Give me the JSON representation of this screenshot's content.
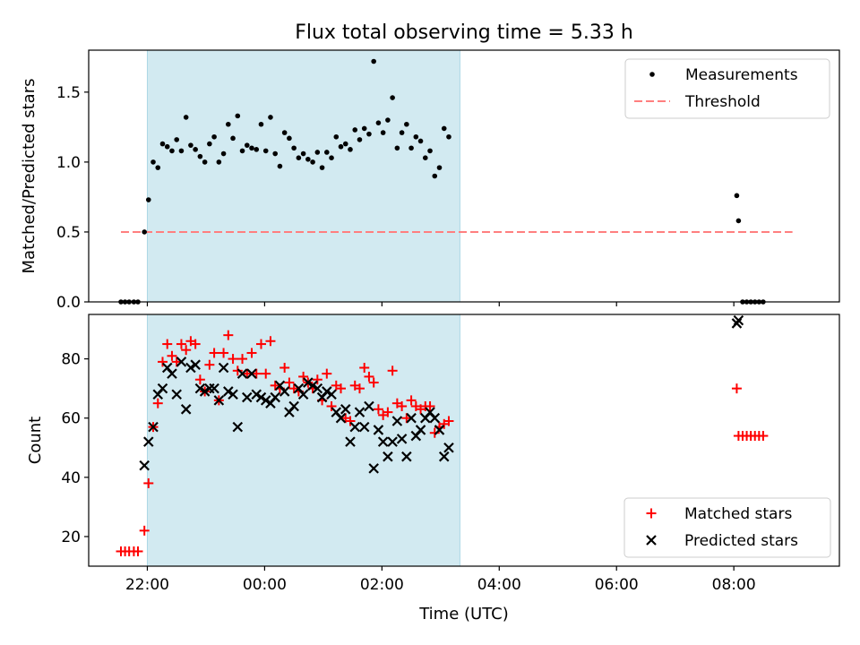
{
  "chart_data": {
    "title": "Flux total observing time = 5.33 h",
    "xlabel": "Time (UTC)",
    "x_unit": "hours relative to 00:00 UTC",
    "xlim": [
      -3.0,
      9.8
    ],
    "x_ticks": [
      {
        "value": -2,
        "label": "22:00"
      },
      {
        "value": 0,
        "label": "00:00"
      },
      {
        "value": 2,
        "label": "02:00"
      },
      {
        "value": 4,
        "label": "04:00"
      },
      {
        "value": 6,
        "label": "06:00"
      },
      {
        "value": 8,
        "label": "08:00"
      }
    ],
    "observing_window": {
      "start": -2.0,
      "end": 3.33,
      "color": "#add8e6"
    },
    "panels": [
      {
        "type": "scatter",
        "ylabel": "Matched/Predicted stars",
        "ylim": [
          0,
          1.8
        ],
        "y_ticks": [
          0.0,
          0.5,
          1.0,
          1.5
        ],
        "y_tick_labels": [
          "0.0",
          "0.5",
          "1.0",
          "1.5"
        ],
        "legend": {
          "placement": "upper right",
          "entries": [
            "Measurements",
            "Threshold"
          ]
        },
        "threshold": {
          "name": "Threshold",
          "value": 0.5,
          "x_range": [
            -2.45,
            9.0
          ],
          "color": "#ff7f7f",
          "style": "dashed"
        },
        "series": [
          {
            "name": "Measurements",
            "marker": "dot",
            "color": "#000000",
            "points": [
              [
                -2.45,
                0.0
              ],
              [
                -2.38,
                0.0
              ],
              [
                -2.31,
                0.0
              ],
              [
                -2.23,
                0.0
              ],
              [
                -2.16,
                0.0
              ],
              [
                -2.05,
                0.5
              ],
              [
                -1.98,
                0.73
              ],
              [
                -1.9,
                1.0
              ],
              [
                -1.82,
                0.96
              ],
              [
                -1.74,
                1.13
              ],
              [
                -1.66,
                1.11
              ],
              [
                -1.58,
                1.08
              ],
              [
                -1.5,
                1.16
              ],
              [
                -1.42,
                1.08
              ],
              [
                -1.34,
                1.32
              ],
              [
                -1.26,
                1.12
              ],
              [
                -1.18,
                1.09
              ],
              [
                -1.1,
                1.04
              ],
              [
                -1.02,
                1.0
              ],
              [
                -0.94,
                1.13
              ],
              [
                -0.86,
                1.18
              ],
              [
                -0.78,
                1.0
              ],
              [
                -0.7,
                1.06
              ],
              [
                -0.62,
                1.27
              ],
              [
                -0.54,
                1.17
              ],
              [
                -0.46,
                1.33
              ],
              [
                -0.38,
                1.08
              ],
              [
                -0.3,
                1.12
              ],
              [
                -0.22,
                1.1
              ],
              [
                -0.14,
                1.09
              ],
              [
                -0.06,
                1.27
              ],
              [
                0.02,
                1.08
              ],
              [
                0.1,
                1.32
              ],
              [
                0.18,
                1.06
              ],
              [
                0.26,
                0.97
              ],
              [
                0.34,
                1.21
              ],
              [
                0.42,
                1.17
              ],
              [
                0.5,
                1.1
              ],
              [
                0.58,
                1.03
              ],
              [
                0.66,
                1.06
              ],
              [
                0.74,
                1.02
              ],
              [
                0.82,
                1.0
              ],
              [
                0.9,
                1.07
              ],
              [
                0.98,
                0.96
              ],
              [
                1.06,
                1.07
              ],
              [
                1.14,
                1.03
              ],
              [
                1.22,
                1.18
              ],
              [
                1.3,
                1.11
              ],
              [
                1.38,
                1.13
              ],
              [
                1.46,
                1.09
              ],
              [
                1.54,
                1.23
              ],
              [
                1.62,
                1.16
              ],
              [
                1.7,
                1.24
              ],
              [
                1.78,
                1.2
              ],
              [
                1.86,
                1.72
              ],
              [
                1.94,
                1.28
              ],
              [
                2.02,
                1.21
              ],
              [
                2.1,
                1.3
              ],
              [
                2.18,
                1.46
              ],
              [
                2.26,
                1.1
              ],
              [
                2.34,
                1.21
              ],
              [
                2.42,
                1.27
              ],
              [
                2.5,
                1.1
              ],
              [
                2.58,
                1.18
              ],
              [
                2.66,
                1.15
              ],
              [
                2.74,
                1.03
              ],
              [
                2.82,
                1.08
              ],
              [
                2.9,
                0.9
              ],
              [
                2.98,
                0.96
              ],
              [
                3.06,
                1.24
              ],
              [
                3.14,
                1.18
              ],
              [
                8.05,
                0.76
              ],
              [
                8.08,
                0.58
              ],
              [
                8.15,
                0.0
              ],
              [
                8.22,
                0.0
              ],
              [
                8.29,
                0.0
              ],
              [
                8.36,
                0.0
              ],
              [
                8.43,
                0.0
              ],
              [
                8.5,
                0.0
              ]
            ]
          }
        ]
      },
      {
        "type": "scatter",
        "ylabel": "Count",
        "ylim": [
          10,
          95
        ],
        "y_ticks": [
          20,
          40,
          60,
          80
        ],
        "y_tick_labels": [
          "20",
          "40",
          "60",
          "80"
        ],
        "legend": {
          "placement": "lower right",
          "entries": [
            "Matched stars",
            "Predicted stars"
          ]
        },
        "series": [
          {
            "name": "Matched stars",
            "marker": "plus",
            "color": "#ff0000",
            "points": [
              [
                -2.45,
                15
              ],
              [
                -2.38,
                15
              ],
              [
                -2.31,
                15
              ],
              [
                -2.23,
                15
              ],
              [
                -2.16,
                15
              ],
              [
                -2.05,
                22
              ],
              [
                -1.98,
                38
              ],
              [
                -1.9,
                57
              ],
              [
                -1.82,
                65
              ],
              [
                -1.74,
                79
              ],
              [
                -1.66,
                85
              ],
              [
                -1.58,
                81
              ],
              [
                -1.5,
                79
              ],
              [
                -1.42,
                85
              ],
              [
                -1.34,
                83
              ],
              [
                -1.26,
                86
              ],
              [
                -1.18,
                85
              ],
              [
                -1.1,
                73
              ],
              [
                -1.02,
                69
              ],
              [
                -0.94,
                78
              ],
              [
                -0.86,
                82
              ],
              [
                -0.78,
                66
              ],
              [
                -0.7,
                82
              ],
              [
                -0.62,
                88
              ],
              [
                -0.54,
                80
              ],
              [
                -0.46,
                76
              ],
              [
                -0.38,
                80
              ],
              [
                -0.3,
                75
              ],
              [
                -0.22,
                82
              ],
              [
                -0.14,
                75
              ],
              [
                -0.06,
                85
              ],
              [
                0.02,
                75
              ],
              [
                0.1,
                86
              ],
              [
                0.18,
                71
              ],
              [
                0.26,
                70
              ],
              [
                0.34,
                77
              ],
              [
                0.42,
                72
              ],
              [
                0.5,
                70
              ],
              [
                0.58,
                69
              ],
              [
                0.66,
                74
              ],
              [
                0.74,
                72
              ],
              [
                0.82,
                70
              ],
              [
                0.9,
                73
              ],
              [
                0.98,
                66
              ],
              [
                1.06,
                75
              ],
              [
                1.14,
                64
              ],
              [
                1.22,
                71
              ],
              [
                1.3,
                70
              ],
              [
                1.38,
                60
              ],
              [
                1.46,
                59
              ],
              [
                1.54,
                71
              ],
              [
                1.62,
                70
              ],
              [
                1.7,
                77
              ],
              [
                1.78,
                74
              ],
              [
                1.86,
                72
              ],
              [
                1.94,
                63
              ],
              [
                2.02,
                61
              ],
              [
                2.1,
                62
              ],
              [
                2.18,
                76
              ],
              [
                2.26,
                65
              ],
              [
                2.34,
                64
              ],
              [
                2.42,
                60
              ],
              [
                2.5,
                66
              ],
              [
                2.58,
                64
              ],
              [
                2.66,
                63
              ],
              [
                2.74,
                64
              ],
              [
                2.82,
                64
              ],
              [
                2.9,
                55
              ],
              [
                2.98,
                57
              ],
              [
                3.06,
                58
              ],
              [
                3.14,
                59
              ],
              [
                8.05,
                70
              ],
              [
                8.08,
                54
              ],
              [
                8.15,
                54
              ],
              [
                8.22,
                54
              ],
              [
                8.29,
                54
              ],
              [
                8.36,
                54
              ],
              [
                8.43,
                54
              ],
              [
                8.5,
                54
              ]
            ]
          },
          {
            "name": "Predicted stars",
            "marker": "x",
            "color": "#000000",
            "points": [
              [
                -2.05,
                44
              ],
              [
                -1.98,
                52
              ],
              [
                -1.9,
                57
              ],
              [
                -1.82,
                68
              ],
              [
                -1.74,
                70
              ],
              [
                -1.66,
                77
              ],
              [
                -1.58,
                75
              ],
              [
                -1.5,
                68
              ],
              [
                -1.42,
                79
              ],
              [
                -1.34,
                63
              ],
              [
                -1.26,
                77
              ],
              [
                -1.18,
                78
              ],
              [
                -1.1,
                70
              ],
              [
                -1.02,
                69
              ],
              [
                -0.94,
                70
              ],
              [
                -0.86,
                70
              ],
              [
                -0.78,
                66
              ],
              [
                -0.7,
                77
              ],
              [
                -0.62,
                69
              ],
              [
                -0.54,
                68
              ],
              [
                -0.46,
                57
              ],
              [
                -0.38,
                75
              ],
              [
                -0.3,
                67
              ],
              [
                -0.22,
                75
              ],
              [
                -0.14,
                68
              ],
              [
                -0.06,
                67
              ],
              [
                0.02,
                66
              ],
              [
                0.1,
                65
              ],
              [
                0.18,
                67
              ],
              [
                0.26,
                71
              ],
              [
                0.34,
                69
              ],
              [
                0.42,
                62
              ],
              [
                0.5,
                64
              ],
              [
                0.58,
                70
              ],
              [
                0.66,
                68
              ],
              [
                0.74,
                72
              ],
              [
                0.82,
                71
              ],
              [
                0.9,
                70
              ],
              [
                0.98,
                67
              ],
              [
                1.06,
                69
              ],
              [
                1.14,
                68
              ],
              [
                1.22,
                62
              ],
              [
                1.3,
                60
              ],
              [
                1.38,
                63
              ],
              [
                1.46,
                52
              ],
              [
                1.54,
                57
              ],
              [
                1.62,
                62
              ],
              [
                1.7,
                57
              ],
              [
                1.78,
                64
              ],
              [
                1.86,
                43
              ],
              [
                1.94,
                56
              ],
              [
                2.02,
                52
              ],
              [
                2.1,
                47
              ],
              [
                2.18,
                52
              ],
              [
                2.26,
                59
              ],
              [
                2.34,
                53
              ],
              [
                2.42,
                47
              ],
              [
                2.5,
                60
              ],
              [
                2.58,
                54
              ],
              [
                2.66,
                56
              ],
              [
                2.74,
                60
              ],
              [
                2.82,
                62
              ],
              [
                2.9,
                60
              ],
              [
                2.98,
                56
              ],
              [
                3.06,
                47
              ],
              [
                3.14,
                50
              ],
              [
                8.05,
                92
              ],
              [
                8.08,
                93
              ]
            ]
          }
        ]
      }
    ]
  }
}
